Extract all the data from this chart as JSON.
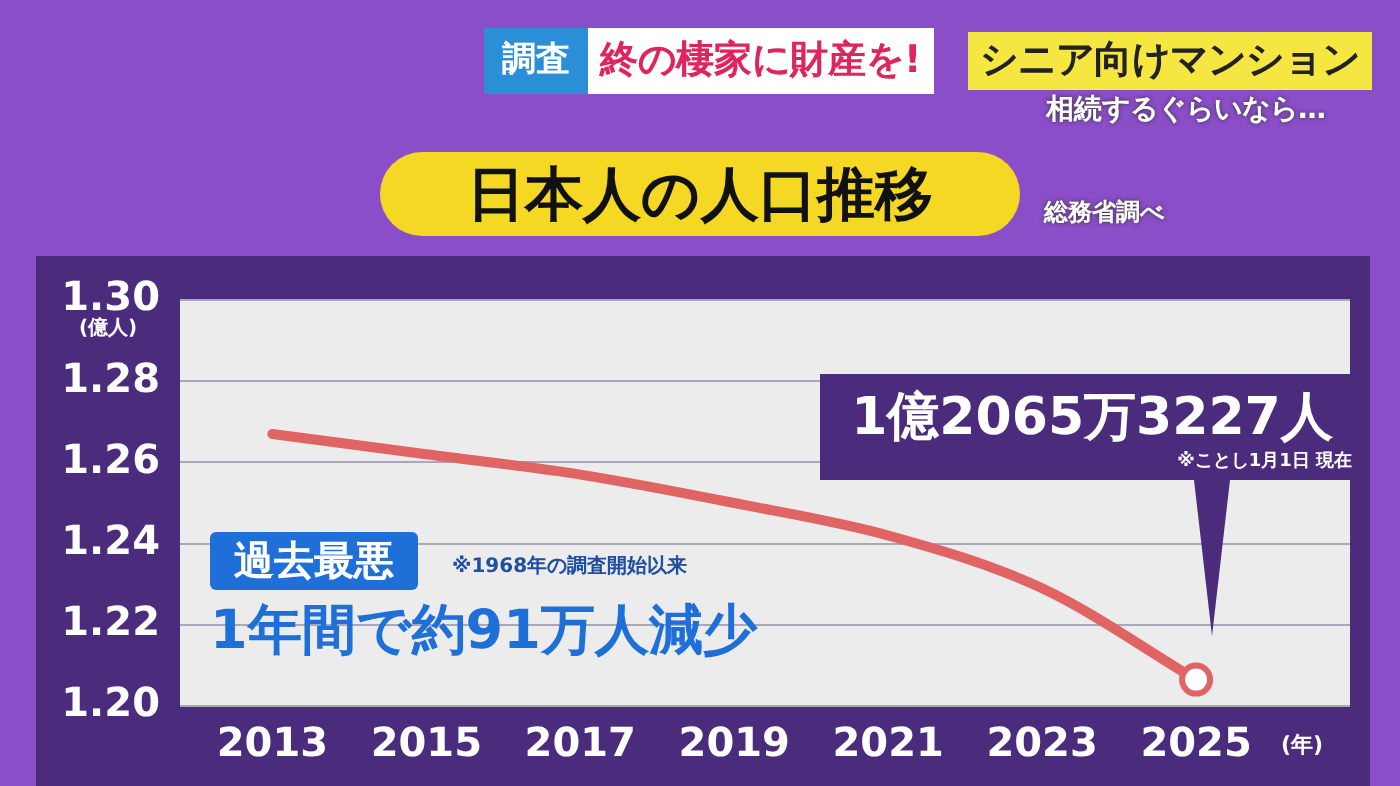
{
  "chart_data": {
    "type": "line",
    "title": "日本人の人口推移",
    "xlabel": "(年)",
    "ylabel": "(億人)",
    "x": [
      2013,
      2015,
      2017,
      2019,
      2021,
      2023,
      2025
    ],
    "series": [
      {
        "color": "#e06464",
        "values": [
          1.267,
          1.262,
          1.257,
          1.25,
          1.242,
          1.229,
          1.2065
        ]
      }
    ],
    "xlim": [
      2011.8,
      2027
    ],
    "xticks": [
      2013,
      2015,
      2017,
      2019,
      2021,
      2023,
      2025
    ],
    "ylim": [
      1.2,
      1.3
    ],
    "yticks": [
      {
        "value": 1.2,
        "label": "1.20"
      },
      {
        "value": 1.22,
        "label": "1.22"
      },
      {
        "value": 1.24,
        "label": "1.24"
      },
      {
        "value": 1.26,
        "label": "1.26"
      },
      {
        "value": 1.28,
        "label": "1.28"
      },
      {
        "value": 1.3,
        "label": "1.30"
      }
    ],
    "grid": "y",
    "legend": false,
    "annotations": [
      "調査",
      "終の棲家に財産を!",
      "シニア向けマンション",
      "相続するぐらいなら…",
      "総務省調べ",
      "過去最悪",
      "※1968年の調査開始以来",
      "1年間で約91万人減少",
      "1億2065万3227人",
      "※ことし1月1日 現在"
    ]
  }
}
